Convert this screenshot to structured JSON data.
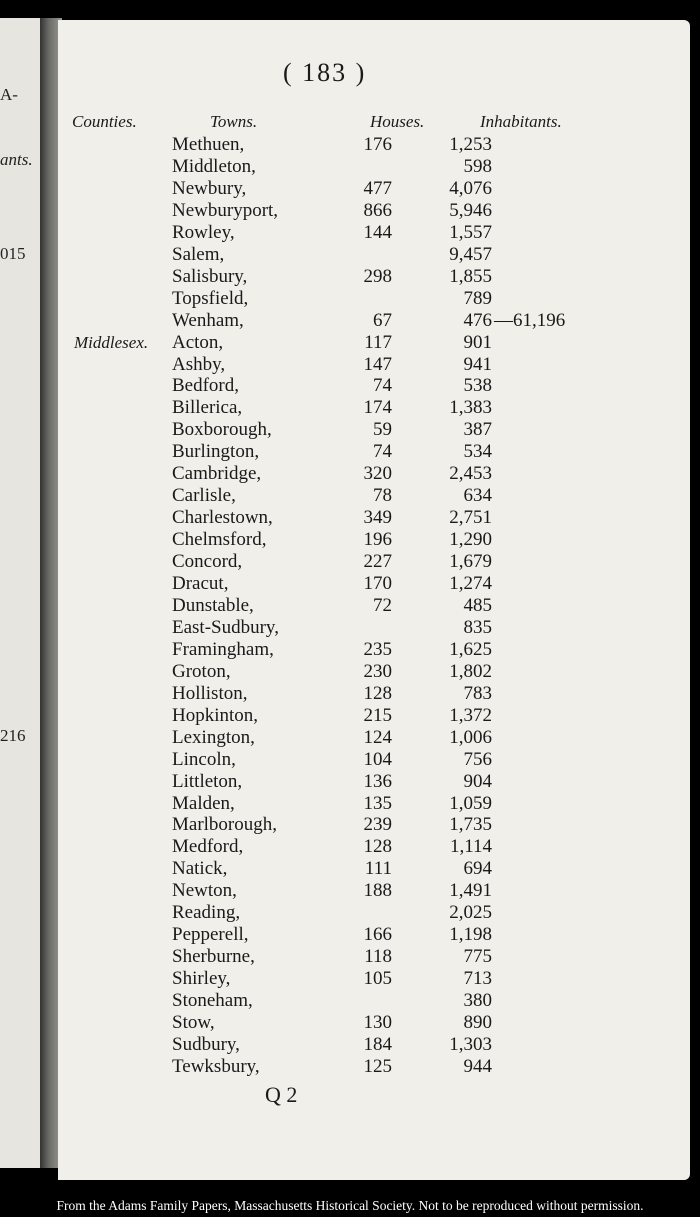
{
  "prev_page_fragments": [
    "A-",
    "ants.",
    "015",
    "216"
  ],
  "page_number": "( 183 )",
  "headers": {
    "counties": "Counties.",
    "towns": "Towns.",
    "houses": "Houses.",
    "inhabitants": "Inhabitants."
  },
  "rows": [
    {
      "county": "",
      "town": "Methuen,",
      "houses": "176",
      "inhabitants": "1,253",
      "total": ""
    },
    {
      "county": "",
      "town": "Middleton,",
      "houses": "",
      "inhabitants": "598",
      "total": ""
    },
    {
      "county": "",
      "town": "Newbury,",
      "houses": "477",
      "inhabitants": "4,076",
      "total": ""
    },
    {
      "county": "",
      "town": "Newburyport,",
      "houses": "866",
      "inhabitants": "5,946",
      "total": ""
    },
    {
      "county": "",
      "town": "Rowley,",
      "houses": "144",
      "inhabitants": "1,557",
      "total": ""
    },
    {
      "county": "",
      "town": "Salem,",
      "houses": "",
      "inhabitants": "9,457",
      "total": ""
    },
    {
      "county": "",
      "town": "Salisbury,",
      "houses": "298",
      "inhabitants": "1,855",
      "total": ""
    },
    {
      "county": "",
      "town": "Topsfield,",
      "houses": "",
      "inhabitants": "789",
      "total": ""
    },
    {
      "county": "",
      "town": "Wenham,",
      "houses": "67",
      "inhabitants": "476",
      "total": "—61,196"
    },
    {
      "county": "Middlesex.",
      "town": "Acton,",
      "houses": "117",
      "inhabitants": "901",
      "total": ""
    },
    {
      "county": "",
      "town": "Ashby,",
      "houses": "147",
      "inhabitants": "941",
      "total": ""
    },
    {
      "county": "",
      "town": "Bedford,",
      "houses": "74",
      "inhabitants": "538",
      "total": ""
    },
    {
      "county": "",
      "town": "Billerica,",
      "houses": "174",
      "inhabitants": "1,383",
      "total": ""
    },
    {
      "county": "",
      "town": "Boxborough,",
      "houses": "59",
      "inhabitants": "387",
      "total": ""
    },
    {
      "county": "",
      "town": "Burlington,",
      "houses": "74",
      "inhabitants": "534",
      "total": ""
    },
    {
      "county": "",
      "town": "Cambridge,",
      "houses": "320",
      "inhabitants": "2,453",
      "total": ""
    },
    {
      "county": "",
      "town": "Carlisle,",
      "houses": "78",
      "inhabitants": "634",
      "total": ""
    },
    {
      "county": "",
      "town": "Charlestown,",
      "houses": "349",
      "inhabitants": "2,751",
      "total": ""
    },
    {
      "county": "",
      "town": "Chelmsford,",
      "houses": "196",
      "inhabitants": "1,290",
      "total": ""
    },
    {
      "county": "",
      "town": "Concord,",
      "houses": "227",
      "inhabitants": "1,679",
      "total": ""
    },
    {
      "county": "",
      "town": "Dracut,",
      "houses": "170",
      "inhabitants": "1,274",
      "total": ""
    },
    {
      "county": "",
      "town": "Dunstable,",
      "houses": "72",
      "inhabitants": "485",
      "total": ""
    },
    {
      "county": "",
      "town": "East-Sudbury,",
      "houses": "",
      "inhabitants": "835",
      "total": ""
    },
    {
      "county": "",
      "town": "Framingham,",
      "houses": "235",
      "inhabitants": "1,625",
      "total": ""
    },
    {
      "county": "",
      "town": "Groton,",
      "houses": "230",
      "inhabitants": "1,802",
      "total": ""
    },
    {
      "county": "",
      "town": "Holliston,",
      "houses": "128",
      "inhabitants": "783",
      "total": ""
    },
    {
      "county": "",
      "town": "Hopkinton,",
      "houses": "215",
      "inhabitants": "1,372",
      "total": ""
    },
    {
      "county": "",
      "town": "Lexington,",
      "houses": "124",
      "inhabitants": "1,006",
      "total": ""
    },
    {
      "county": "",
      "town": "Lincoln,",
      "houses": "104",
      "inhabitants": "756",
      "total": ""
    },
    {
      "county": "",
      "town": "Littleton,",
      "houses": "136",
      "inhabitants": "904",
      "total": ""
    },
    {
      "county": "",
      "town": "Malden,",
      "houses": "135",
      "inhabitants": "1,059",
      "total": ""
    },
    {
      "county": "",
      "town": "Marlborough,",
      "houses": "239",
      "inhabitants": "1,735",
      "total": ""
    },
    {
      "county": "",
      "town": "Medford,",
      "houses": "128",
      "inhabitants": "1,114",
      "total": ""
    },
    {
      "county": "",
      "town": "Natick,",
      "houses": "111",
      "inhabitants": "694",
      "total": ""
    },
    {
      "county": "",
      "town": "Newton,",
      "houses": "188",
      "inhabitants": "1,491",
      "total": ""
    },
    {
      "county": "",
      "town": "Reading,",
      "houses": "",
      "inhabitants": "2,025",
      "total": ""
    },
    {
      "county": "",
      "town": "Pepperell,",
      "houses": "166",
      "inhabitants": "1,198",
      "total": ""
    },
    {
      "county": "",
      "town": "Sherburne,",
      "houses": "118",
      "inhabitants": "775",
      "total": ""
    },
    {
      "county": "",
      "town": "Shirley,",
      "houses": "105",
      "inhabitants": "713",
      "total": ""
    },
    {
      "county": "",
      "town": "Stoneham,",
      "houses": "",
      "inhabitants": "380",
      "total": ""
    },
    {
      "county": "",
      "town": "Stow,",
      "houses": "130",
      "inhabitants": "890",
      "total": ""
    },
    {
      "county": "",
      "town": "Sudbury,",
      "houses": "184",
      "inhabitants": "1,303",
      "total": ""
    },
    {
      "county": "",
      "town": "Tewksbury,",
      "houses": "125",
      "inhabitants": "944",
      "total": ""
    }
  ],
  "signature_mark": "Q 2",
  "footer": "From the Adams Family Papers, Massachusetts Historical Society. Not to be reproduced without permission."
}
